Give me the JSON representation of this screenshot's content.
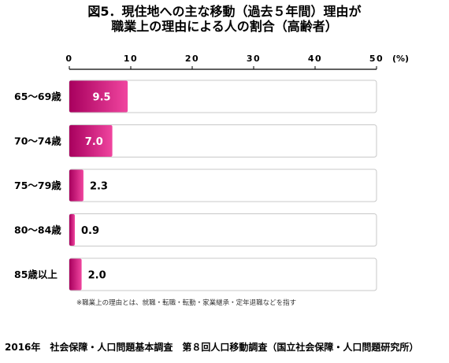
{
  "title_line1": "図5．現住地への主な移動（過去５年間）理由が",
  "title_line2": "職業上の理由による人の割合（高齢者）",
  "unit_label": "(%)",
  "note": "※職業上の理由とは、就職・転職・転勤・家業継承・定年退職などを指す",
  "footer": "2016年　社会保障・人口問題基本調査　第８回人口移動調査（国立社会保障・人口問題研究所）",
  "colors": {
    "bar_start": "#a8005e",
    "bar_end": "#f0459f",
    "frame": "#c8c8c8",
    "axis": "#000000"
  },
  "chart_data": {
    "type": "bar",
    "orientation": "horizontal",
    "categories": [
      "65～69歳",
      "70～74歳",
      "75～79歳",
      "80～84歳",
      "85歳以上"
    ],
    "values": [
      9.5,
      7.0,
      2.3,
      0.9,
      2.0
    ],
    "data_labels": [
      "9.5",
      "7.0",
      "2.3",
      "0.9",
      "2.0"
    ],
    "xlim": [
      0,
      50
    ],
    "ticks": [
      0,
      10,
      20,
      30,
      40,
      50
    ],
    "tick_labels": [
      "0",
      "10",
      "20",
      "30",
      "40",
      "50"
    ]
  }
}
